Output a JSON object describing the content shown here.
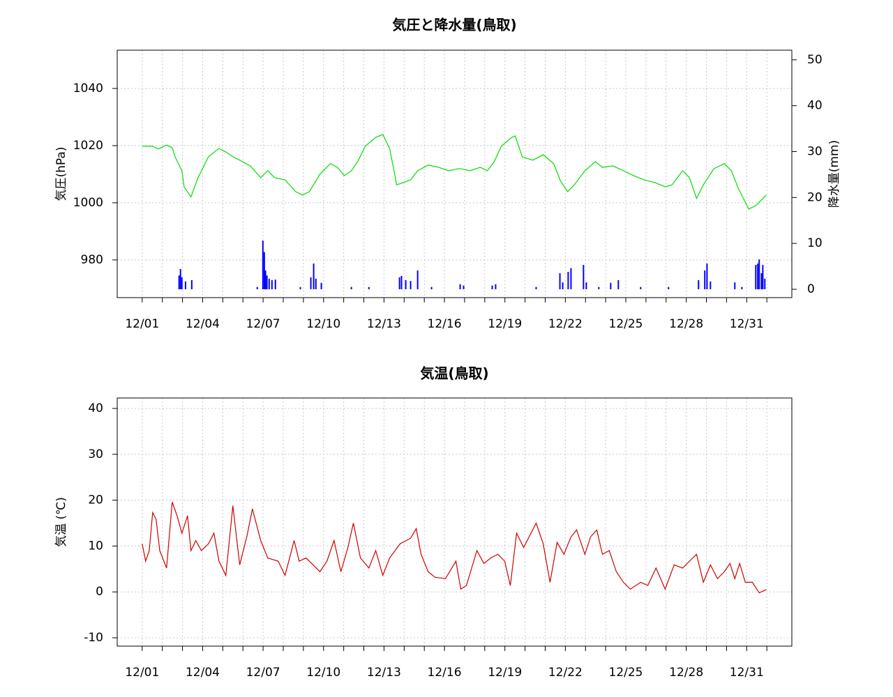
{
  "chart_data": [
    {
      "type": "line",
      "title": "気圧と降水量(鳥取)",
      "ylabel": "気圧(hPa)",
      "y2label": "降水量(mm)",
      "xlim": [
        -1.24,
        32.24
      ],
      "ylim": [
        966.8,
        1053.4
      ],
      "y2lim": [
        -1.82,
        52.1
      ],
      "xticks": [
        {
          "value": 0,
          "label": "12/01"
        },
        {
          "value": 3,
          "label": "12/04"
        },
        {
          "value": 6,
          "label": "12/07"
        },
        {
          "value": 9,
          "label": "12/10"
        },
        {
          "value": 12,
          "label": "12/13"
        },
        {
          "value": 15,
          "label": "12/16"
        },
        {
          "value": 18,
          "label": "12/19"
        },
        {
          "value": 21,
          "label": "12/22"
        },
        {
          "value": 24,
          "label": "12/25"
        },
        {
          "value": 27,
          "label": "12/28"
        },
        {
          "value": 30,
          "label": "12/31"
        }
      ],
      "xminorticks": [
        1,
        2,
        4,
        5,
        7,
        8,
        10,
        11,
        13,
        14,
        16,
        17,
        19,
        20,
        22,
        23,
        25,
        26,
        28,
        29,
        31
      ],
      "yticks": [
        980,
        1000,
        1020,
        1040
      ],
      "y2ticks": [
        0,
        10,
        20,
        30,
        40,
        50
      ],
      "grid": true,
      "series": [
        {
          "type": "line",
          "color": "#00dd00",
          "x": [
            0,
            0.52,
            0.8,
            1.21,
            1.49,
            1.63,
            1.97,
            2.08,
            2.42,
            2.77,
            3.29,
            3.81,
            4.15,
            4.5,
            4.84,
            5.36,
            5.88,
            6.23,
            6.57,
            7.09,
            7.61,
            7.96,
            8.3,
            8.82,
            9.34,
            9.69,
            10.03,
            10.38,
            10.73,
            11.07,
            11.59,
            11.94,
            12.28,
            12.63,
            12.98,
            13.32,
            13.67,
            14.19,
            14.71,
            15.22,
            15.74,
            16.26,
            16.78,
            17.13,
            17.47,
            17.82,
            18.34,
            18.51,
            18.86,
            19.38,
            19.9,
            20.42,
            20.76,
            21.11,
            21.45,
            21.97,
            22.49,
            22.84,
            23.36,
            23.88,
            24.39,
            24.91,
            25.43,
            25.95,
            26.3,
            26.82,
            27.16,
            27.51,
            27.85,
            28.37,
            28.89,
            29.24,
            29.58,
            30.1,
            30.45,
            30.97
          ],
          "values": [
            1019.8,
            1019.8,
            1018.8,
            1020.2,
            1019.3,
            1016.1,
            1011.2,
            1005.6,
            1002.0,
            1008.8,
            1016.1,
            1019.0,
            1017.8,
            1016.1,
            1014.9,
            1012.9,
            1008.8,
            1011.2,
            1008.8,
            1008.0,
            1003.9,
            1002.7,
            1003.9,
            1010.0,
            1013.7,
            1012.4,
            1009.5,
            1011.2,
            1014.9,
            1019.8,
            1022.9,
            1023.9,
            1019.0,
            1006.3,
            1007.1,
            1008.0,
            1011.2,
            1013.2,
            1012.4,
            1011.2,
            1012.0,
            1011.2,
            1012.4,
            1011.2,
            1014.4,
            1019.8,
            1022.9,
            1023.4,
            1016.1,
            1014.9,
            1016.8,
            1013.7,
            1007.6,
            1003.9,
            1006.3,
            1011.2,
            1014.4,
            1012.4,
            1012.9,
            1011.2,
            1009.5,
            1008.0,
            1007.1,
            1005.6,
            1006.3,
            1011.2,
            1008.8,
            1001.5,
            1006.3,
            1011.9,
            1013.7,
            1011.2,
            1005.1,
            997.8,
            999.0,
            1002.7
          ]
        },
        {
          "type": "bar",
          "axis": "y2",
          "color": "#0000ff",
          "x": [
            1.83,
            1.9,
            1.97,
            2.15,
            2.46,
            5.71,
            5.99,
            6.06,
            6.12,
            6.19,
            6.3,
            6.44,
            6.61,
            7.85,
            8.37,
            8.51,
            8.62,
            8.89,
            10.38,
            11.25,
            12.77,
            12.87,
            13.08,
            13.32,
            13.67,
            14.36,
            15.78,
            15.95,
            17.37,
            17.54,
            19.55,
            20.73,
            20.87,
            21.14,
            21.28,
            21.9,
            22.04,
            22.66,
            23.25,
            23.63,
            24.74,
            26.12,
            27.61,
            27.92,
            28.03,
            28.2,
            29.41,
            29.76,
            30.45,
            30.55,
            30.62,
            30.73,
            30.8,
            30.9
          ],
          "values": [
            3.0,
            4.4,
            2.6,
            1.7,
            2.0,
            0.5,
            10.6,
            8.1,
            4.1,
            3.0,
            2.3,
            2.0,
            2.1,
            0.5,
            2.6,
            5.6,
            2.3,
            1.4,
            0.5,
            0.5,
            2.6,
            2.9,
            2.0,
            1.8,
            4.1,
            0.5,
            1.1,
            0.8,
            0.8,
            1.1,
            0.5,
            3.5,
            1.5,
            3.8,
            4.6,
            5.3,
            1.5,
            0.5,
            1.4,
            2.0,
            0.5,
            0.5,
            2.0,
            4.1,
            5.6,
            1.7,
            1.5,
            0.5,
            5.3,
            5.6,
            6.5,
            3.5,
            5.3,
            2.3
          ]
        }
      ]
    },
    {
      "type": "line",
      "title": "気温(鳥取)",
      "ylabel": "気温 (℃)",
      "xlim": [
        -1.24,
        32.24
      ],
      "ylim": [
        -11.82,
        42.28
      ],
      "xticks": [
        {
          "value": 0,
          "label": "12/01"
        },
        {
          "value": 3,
          "label": "12/04"
        },
        {
          "value": 6,
          "label": "12/07"
        },
        {
          "value": 9,
          "label": "12/10"
        },
        {
          "value": 12,
          "label": "12/13"
        },
        {
          "value": 15,
          "label": "12/16"
        },
        {
          "value": 18,
          "label": "12/19"
        },
        {
          "value": 21,
          "label": "12/22"
        },
        {
          "value": 24,
          "label": "12/25"
        },
        {
          "value": 27,
          "label": "12/28"
        },
        {
          "value": 30,
          "label": "12/31"
        }
      ],
      "xminorticks": [
        1,
        2,
        4,
        5,
        7,
        8,
        10,
        11,
        13,
        14,
        16,
        17,
        19,
        20,
        22,
        23,
        25,
        26,
        28,
        29,
        31
      ],
      "yticks": [
        -10,
        0,
        10,
        20,
        30,
        40
      ],
      "grid": true,
      "series": [
        {
          "type": "line",
          "color": "#cc0000",
          "x": [
            0,
            0.17,
            0.35,
            0.52,
            0.69,
            0.87,
            1.21,
            1.49,
            1.73,
            1.97,
            2.25,
            2.42,
            2.66,
            2.94,
            3.29,
            3.56,
            3.81,
            4.15,
            4.5,
            4.84,
            5.19,
            5.47,
            5.88,
            6.23,
            6.75,
            7.09,
            7.54,
            7.79,
            8.13,
            8.48,
            8.82,
            9.17,
            9.52,
            9.86,
            10.21,
            10.48,
            10.83,
            11.25,
            11.59,
            11.94,
            12.28,
            12.8,
            13.32,
            13.6,
            13.84,
            14.19,
            14.53,
            15.05,
            15.57,
            15.81,
            16.09,
            16.61,
            16.96,
            17.3,
            17.65,
            17.99,
            18.27,
            18.58,
            18.93,
            19.2,
            19.55,
            19.9,
            20.24,
            20.59,
            20.93,
            21.28,
            21.56,
            21.97,
            22.25,
            22.56,
            22.84,
            23.18,
            23.53,
            23.88,
            24.22,
            24.74,
            25.09,
            25.5,
            25.95,
            26.4,
            26.82,
            27.16,
            27.51,
            27.85,
            28.2,
            28.55,
            28.89,
            29.17,
            29.41,
            29.65,
            29.93,
            30.28,
            30.62,
            30.97
          ],
          "values": [
            10.5,
            6.7,
            9.0,
            17.3,
            15.8,
            9.0,
            5.2,
            19.6,
            16.6,
            12.8,
            16.6,
            9.0,
            11.2,
            9.0,
            10.5,
            12.8,
            6.7,
            3.6,
            18.8,
            5.9,
            12.0,
            18.1,
            11.2,
            7.4,
            6.7,
            3.6,
            11.2,
            6.7,
            7.4,
            5.9,
            4.4,
            6.7,
            11.2,
            4.4,
            9.7,
            15.0,
            7.4,
            5.2,
            9.0,
            3.6,
            7.4,
            10.5,
            11.7,
            13.8,
            8.2,
            4.4,
            3.2,
            2.9,
            6.7,
            0.6,
            1.4,
            9.0,
            6.2,
            7.4,
            8.2,
            6.7,
            1.4,
            12.8,
            9.7,
            12.0,
            15.0,
            10.5,
            2.1,
            10.8,
            8.2,
            12.0,
            13.5,
            8.2,
            12.0,
            13.5,
            8.2,
            9.0,
            4.4,
            2.1,
            0.6,
            2.1,
            1.4,
            5.2,
            0.6,
            5.9,
            5.2,
            6.7,
            8.2,
            2.1,
            5.9,
            2.9,
            4.4,
            6.2,
            2.9,
            6.2,
            2.1,
            2.1,
            -0.2,
            0.5
          ]
        }
      ]
    }
  ]
}
